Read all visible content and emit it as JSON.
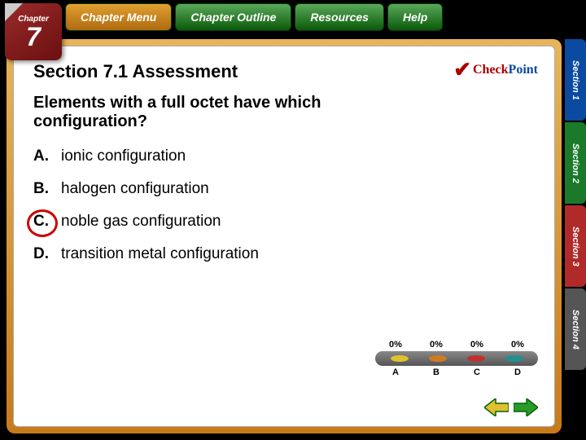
{
  "chapter": {
    "label": "Chapter",
    "number": "7"
  },
  "nav": {
    "menu": "Chapter Menu",
    "outline": "Chapter Outline",
    "resources": "Resources",
    "help": "Help"
  },
  "side_tabs": [
    {
      "label": "Section 1",
      "color": "#0a4aa0"
    },
    {
      "label": "Section 2",
      "color": "#1a7a2a"
    },
    {
      "label": "Section 3",
      "color": "#b02a2a"
    },
    {
      "label": "Section 4",
      "color": "#555555"
    }
  ],
  "checkpoint": {
    "check": "Check",
    "point": "Point"
  },
  "section_title": "Section 7.1 Assessment",
  "question": "Elements with a full octet have which configuration?",
  "answers": [
    {
      "letter": "A.",
      "text": "ionic configuration",
      "correct": false
    },
    {
      "letter": "B.",
      "text": "halogen configuration",
      "correct": false
    },
    {
      "letter": "C.",
      "text": "noble gas configuration",
      "correct": true
    },
    {
      "letter": "D.",
      "text": "transition metal configuration",
      "correct": false
    }
  ],
  "responses": {
    "percents": [
      "0%",
      "0%",
      "0%",
      "0%"
    ],
    "labels": [
      "A",
      "B",
      "C",
      "D"
    ],
    "dot_colors": [
      "#e0c030",
      "#d07a20",
      "#c03030",
      "#209090"
    ]
  }
}
